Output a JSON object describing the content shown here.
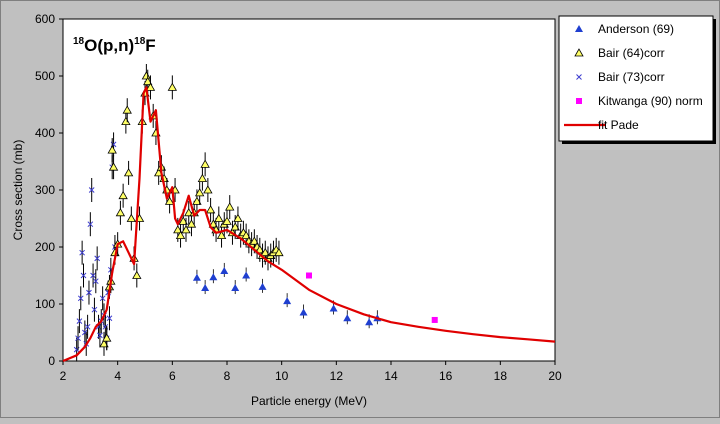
{
  "chart_data": {
    "type": "scatter",
    "title": "18O(p,n)18F",
    "title_parts": {
      "sup1": "18",
      "mid": "O(p,n)",
      "sup2": "18",
      "end": "F"
    },
    "xlabel": "Particle energy (MeV)",
    "ylabel": "Cross section (mb)",
    "xlim": [
      2,
      20
    ],
    "ylim": [
      0,
      600
    ],
    "x_ticks": [
      2,
      4,
      6,
      8,
      10,
      12,
      14,
      16,
      18,
      20
    ],
    "y_ticks": [
      0,
      100,
      200,
      300,
      400,
      500,
      600
    ],
    "grid": false,
    "legend_position": "right",
    "colors": {
      "plot_bg": "#ffffff",
      "outer_bg": "#c0c0c0",
      "anderson": "#1f3fd0",
      "bair64_fill": "#ffff66",
      "bair73": "#3c3ccf",
      "kitwanga": "#ff00ff",
      "fit": "#e00000"
    },
    "series": [
      {
        "name": "Anderson (69)",
        "marker": "triangle",
        "points": [
          [
            6.9,
            146
          ],
          [
            7.2,
            128
          ],
          [
            7.5,
            147
          ],
          [
            7.9,
            158
          ],
          [
            8.3,
            128
          ],
          [
            8.7,
            150
          ],
          [
            9.3,
            130
          ],
          [
            10.2,
            105
          ],
          [
            10.8,
            85
          ],
          [
            11.9,
            92
          ],
          [
            12.4,
            75
          ],
          [
            13.2,
            68
          ],
          [
            13.5,
            75
          ]
        ]
      },
      {
        "name": "Bair (64)corr",
        "marker": "triangle-open",
        "points": [
          [
            3.5,
            30
          ],
          [
            3.6,
            40
          ],
          [
            3.7,
            130
          ],
          [
            3.75,
            140
          ],
          [
            3.8,
            370
          ],
          [
            3.85,
            340
          ],
          [
            3.9,
            190
          ],
          [
            4.0,
            205
          ],
          [
            4.1,
            260
          ],
          [
            4.2,
            290
          ],
          [
            4.3,
            420
          ],
          [
            4.35,
            440
          ],
          [
            4.4,
            330
          ],
          [
            4.5,
            250
          ],
          [
            4.6,
            180
          ],
          [
            4.7,
            150
          ],
          [
            4.8,
            250
          ],
          [
            4.9,
            420
          ],
          [
            5.0,
            470
          ],
          [
            5.05,
            500
          ],
          [
            5.1,
            490
          ],
          [
            5.2,
            480
          ],
          [
            5.3,
            430
          ],
          [
            5.4,
            400
          ],
          [
            5.5,
            330
          ],
          [
            5.6,
            340
          ],
          [
            5.7,
            320
          ],
          [
            5.8,
            300
          ],
          [
            5.9,
            280
          ],
          [
            6.0,
            480
          ],
          [
            6.1,
            300
          ],
          [
            6.2,
            230
          ],
          [
            6.3,
            220
          ],
          [
            6.4,
            245
          ],
          [
            6.5,
            230
          ],
          [
            6.6,
            260
          ],
          [
            6.7,
            240
          ],
          [
            6.8,
            260
          ],
          [
            6.9,
            280
          ],
          [
            7.0,
            295
          ],
          [
            7.1,
            320
          ],
          [
            7.2,
            345
          ],
          [
            7.3,
            300
          ],
          [
            7.4,
            265
          ],
          [
            7.5,
            240
          ],
          [
            7.6,
            230
          ],
          [
            7.7,
            250
          ],
          [
            7.8,
            220
          ],
          [
            7.9,
            240
          ],
          [
            8.0,
            245
          ],
          [
            8.1,
            270
          ],
          [
            8.2,
            225
          ],
          [
            8.3,
            235
          ],
          [
            8.4,
            250
          ],
          [
            8.5,
            220
          ],
          [
            8.6,
            225
          ],
          [
            8.7,
            220
          ],
          [
            8.8,
            210
          ],
          [
            8.9,
            205
          ],
          [
            9.0,
            210
          ],
          [
            9.1,
            200
          ],
          [
            9.2,
            195
          ],
          [
            9.3,
            185
          ],
          [
            9.4,
            190
          ],
          [
            9.5,
            180
          ],
          [
            9.6,
            185
          ],
          [
            9.7,
            190
          ],
          [
            9.8,
            195
          ],
          [
            9.9,
            190
          ]
        ]
      },
      {
        "name": "Bair (73)corr",
        "marker": "x",
        "points": [
          [
            2.5,
            20
          ],
          [
            2.55,
            40
          ],
          [
            2.6,
            70
          ],
          [
            2.65,
            110
          ],
          [
            2.7,
            190
          ],
          [
            2.75,
            150
          ],
          [
            2.8,
            50
          ],
          [
            2.85,
            30
          ],
          [
            2.9,
            60
          ],
          [
            2.95,
            120
          ],
          [
            3.0,
            240
          ],
          [
            3.05,
            300
          ],
          [
            3.1,
            150
          ],
          [
            3.15,
            90
          ],
          [
            3.2,
            140
          ],
          [
            3.25,
            180
          ],
          [
            3.3,
            60
          ],
          [
            3.35,
            45
          ],
          [
            3.4,
            70
          ],
          [
            3.45,
            110
          ],
          [
            3.5,
            80
          ],
          [
            3.55,
            60
          ],
          [
            3.6,
            40
          ],
          [
            3.65,
            120
          ],
          [
            3.7,
            75
          ],
          [
            3.75,
            160
          ],
          [
            3.8,
            340
          ],
          [
            3.85,
            380
          ],
          [
            3.9,
            200
          ]
        ]
      },
      {
        "name": "Kitwanga (90) norm",
        "marker": "square",
        "points": [
          [
            11.0,
            150
          ],
          [
            15.6,
            72
          ]
        ]
      },
      {
        "name": "fit Pade",
        "marker": "line",
        "points": [
          [
            2.0,
            0
          ],
          [
            2.5,
            10
          ],
          [
            2.8,
            25
          ],
          [
            3.0,
            40
          ],
          [
            3.2,
            60
          ],
          [
            3.4,
            70
          ],
          [
            3.6,
            90
          ],
          [
            3.8,
            155
          ],
          [
            4.0,
            205
          ],
          [
            4.2,
            210
          ],
          [
            4.4,
            190
          ],
          [
            4.6,
            170
          ],
          [
            4.8,
            320
          ],
          [
            4.95,
            470
          ],
          [
            5.05,
            480
          ],
          [
            5.2,
            420
          ],
          [
            5.4,
            440
          ],
          [
            5.6,
            330
          ],
          [
            5.8,
            285
          ],
          [
            6.0,
            305
          ],
          [
            6.1,
            250
          ],
          [
            6.2,
            240
          ],
          [
            6.4,
            260
          ],
          [
            6.6,
            290
          ],
          [
            6.8,
            255
          ],
          [
            7.0,
            265
          ],
          [
            7.2,
            265
          ],
          [
            7.4,
            235
          ],
          [
            7.6,
            225
          ],
          [
            8.0,
            230
          ],
          [
            8.5,
            215
          ],
          [
            9.0,
            195
          ],
          [
            9.5,
            175
          ],
          [
            10.0,
            160
          ],
          [
            11.0,
            125
          ],
          [
            12.0,
            100
          ],
          [
            13.0,
            82
          ],
          [
            14.0,
            68
          ],
          [
            15.0,
            60
          ],
          [
            16.0,
            53
          ],
          [
            17.0,
            47
          ],
          [
            18.0,
            42
          ],
          [
            19.0,
            38
          ],
          [
            20.0,
            34
          ]
        ]
      }
    ]
  }
}
